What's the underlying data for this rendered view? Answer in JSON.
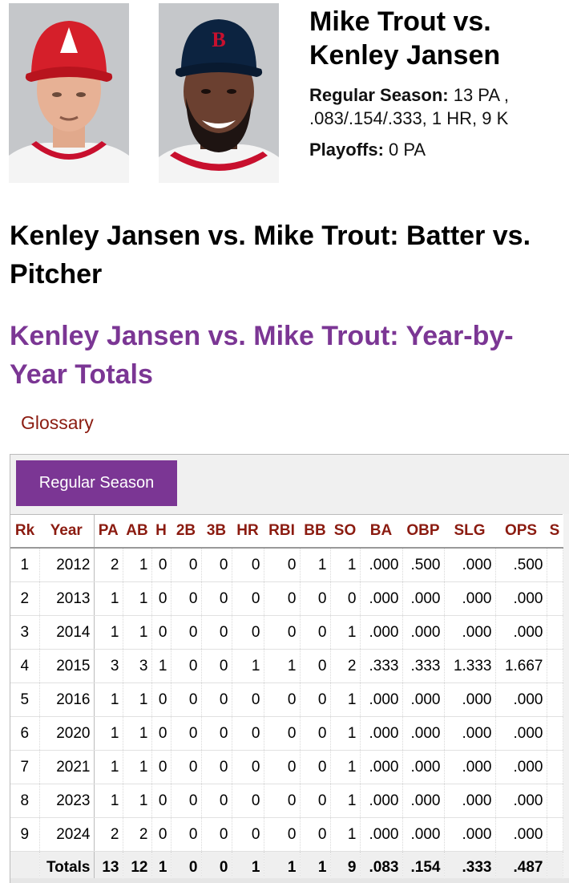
{
  "matchup": {
    "title": "Mike Trout vs. Kenley Jansen",
    "regular_label": "Regular Season:",
    "regular_value": " 13 PA , .083/.154/.333, 1 HR, 9 K",
    "playoffs_label": "Playoffs:",
    "playoffs_value": " 0 PA"
  },
  "page": {
    "title": "Kenley Jansen vs. Mike Trout: Batter vs. Pitcher",
    "section_title": "Kenley Jansen vs. Mike Trout: Year-by-Year Totals",
    "glossary": "Glossary"
  },
  "colors": {
    "accent_purple": "#7b3694",
    "header_red": "#8b1b10"
  },
  "table": {
    "tab_label": "Regular Season",
    "headers": [
      "Rk",
      "Year",
      "PA",
      "AB",
      "H",
      "2B",
      "3B",
      "HR",
      "RBI",
      "BB",
      "SO",
      "BA",
      "OBP",
      "SLG",
      "OPS",
      "S"
    ],
    "rows": [
      [
        "1",
        "2012",
        "2",
        "1",
        "0",
        "0",
        "0",
        "0",
        "0",
        "1",
        "1",
        ".000",
        ".500",
        ".000",
        ".500",
        ""
      ],
      [
        "2",
        "2013",
        "1",
        "1",
        "0",
        "0",
        "0",
        "0",
        "0",
        "0",
        "0",
        ".000",
        ".000",
        ".000",
        ".000",
        ""
      ],
      [
        "3",
        "2014",
        "1",
        "1",
        "0",
        "0",
        "0",
        "0",
        "0",
        "0",
        "1",
        ".000",
        ".000",
        ".000",
        ".000",
        ""
      ],
      [
        "4",
        "2015",
        "3",
        "3",
        "1",
        "0",
        "0",
        "1",
        "1",
        "0",
        "2",
        ".333",
        ".333",
        "1.333",
        "1.667",
        ""
      ],
      [
        "5",
        "2016",
        "1",
        "1",
        "0",
        "0",
        "0",
        "0",
        "0",
        "0",
        "1",
        ".000",
        ".000",
        ".000",
        ".000",
        ""
      ],
      [
        "6",
        "2020",
        "1",
        "1",
        "0",
        "0",
        "0",
        "0",
        "0",
        "0",
        "1",
        ".000",
        ".000",
        ".000",
        ".000",
        ""
      ],
      [
        "7",
        "2021",
        "1",
        "1",
        "0",
        "0",
        "0",
        "0",
        "0",
        "0",
        "1",
        ".000",
        ".000",
        ".000",
        ".000",
        ""
      ],
      [
        "8",
        "2023",
        "1",
        "1",
        "0",
        "0",
        "0",
        "0",
        "0",
        "0",
        "1",
        ".000",
        ".000",
        ".000",
        ".000",
        ""
      ],
      [
        "9",
        "2024",
        "2",
        "2",
        "0",
        "0",
        "0",
        "0",
        "0",
        "0",
        "1",
        ".000",
        ".000",
        ".000",
        ".000",
        ""
      ]
    ],
    "totals": [
      "",
      "Totals",
      "13",
      "12",
      "1",
      "0",
      "0",
      "1",
      "1",
      "1",
      "9",
      ".083",
      ".154",
      ".333",
      ".487",
      ""
    ]
  }
}
